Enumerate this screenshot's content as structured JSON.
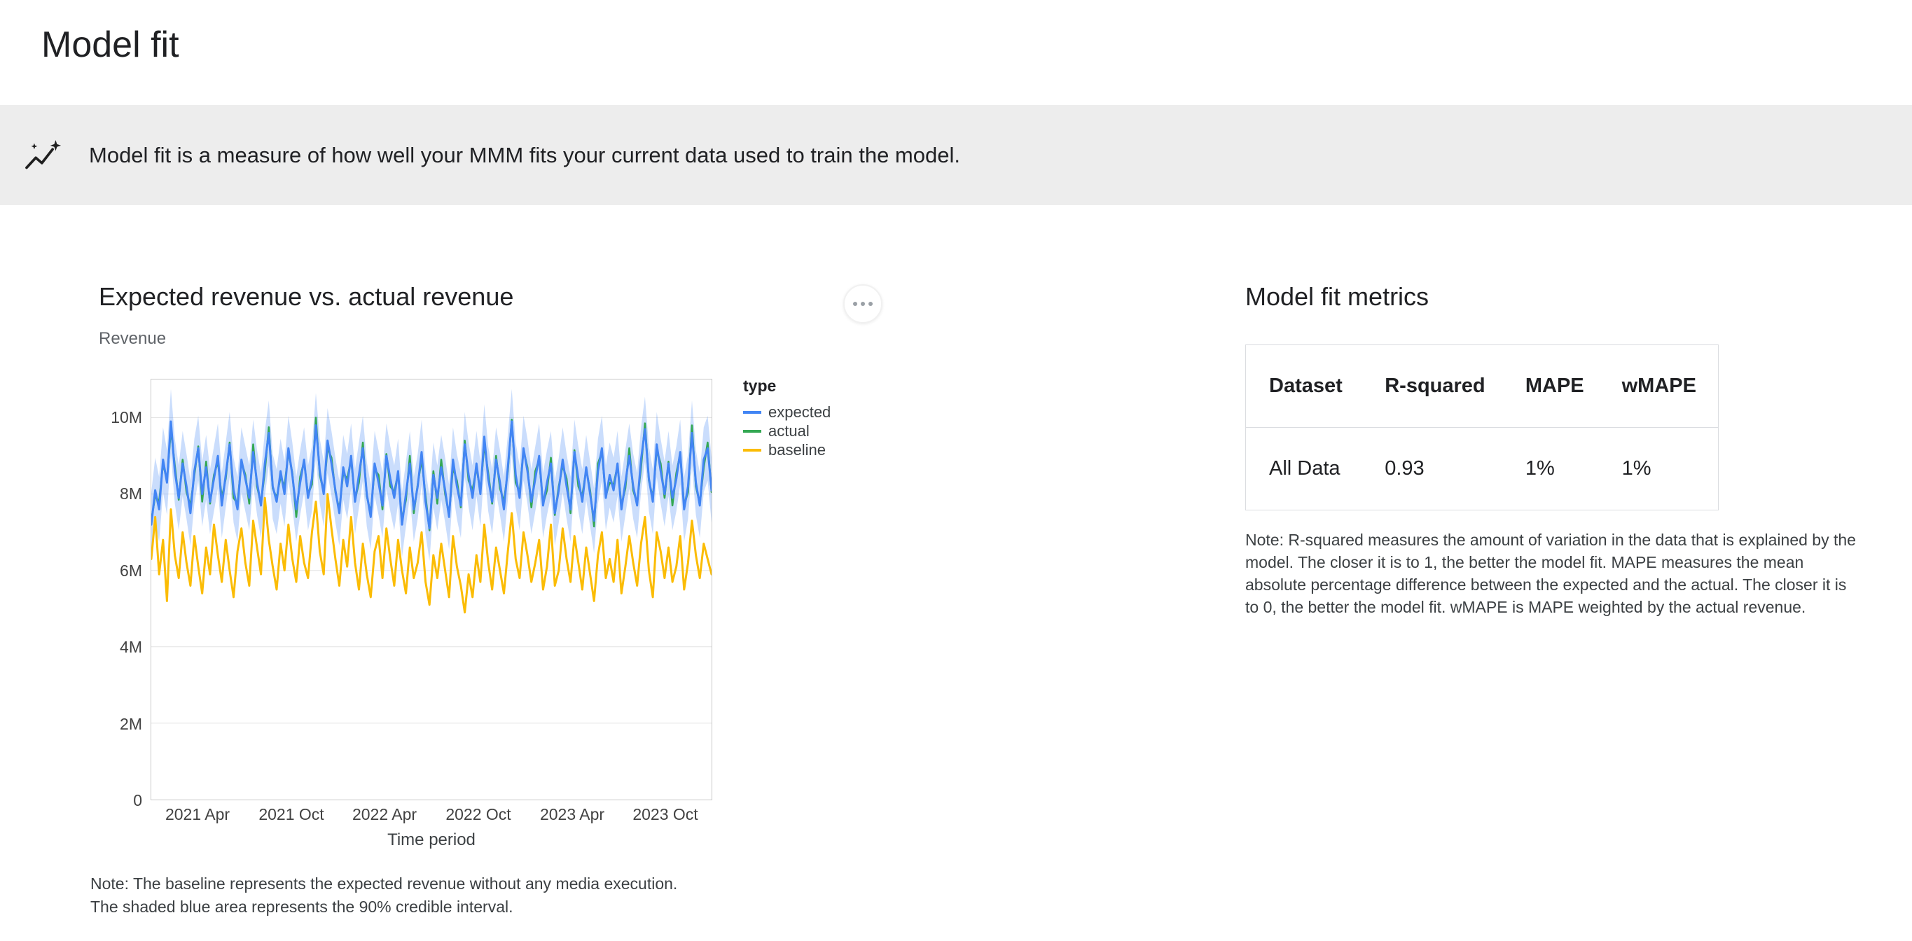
{
  "page": {
    "title": "Model fit"
  },
  "banner": {
    "icon": "insights-icon",
    "text": "Model fit is a measure of how well your MMM fits your current data used to train the model."
  },
  "chart_note_lines": [
    "Note: The baseline represents the expected revenue without any media execution.",
    "The shaded blue area represents the 90% credible interval."
  ],
  "metrics": {
    "title": "Model fit metrics",
    "table": {
      "headers": [
        "Dataset",
        "R-squared",
        "MAPE",
        "wMAPE"
      ],
      "rows": [
        [
          "All Data",
          "0.93",
          "1%",
          "1%"
        ]
      ]
    },
    "note": "Note: R-squared measures the amount of variation in the data that is explained by the model. The closer it is to 1, the better the model fit. MAPE measures the mean absolute percentage difference between the expected and the actual. The closer it is to 0, the better the model fit. wMAPE is MAPE weighted by the actual revenue."
  },
  "chart_data": {
    "type": "line",
    "title": "Expected revenue vs. actual revenue",
    "ylabel": "Revenue",
    "xlabel": "Time period",
    "ylim_m": [
      0,
      11
    ],
    "y_ticks": [
      {
        "value_m": 0,
        "label": "0"
      },
      {
        "value_m": 2,
        "label": "2M"
      },
      {
        "value_m": 4,
        "label": "4M"
      },
      {
        "value_m": 6,
        "label": "6M"
      },
      {
        "value_m": 8,
        "label": "8M"
      },
      {
        "value_m": 10,
        "label": "10M"
      }
    ],
    "x_ticks": [
      {
        "f": 0.083,
        "label": "2021 Apr"
      },
      {
        "f": 0.25,
        "label": "2021 Oct"
      },
      {
        "f": 0.417,
        "label": "2022 Apr"
      },
      {
        "f": 0.583,
        "label": "2022 Oct"
      },
      {
        "f": 0.75,
        "label": "2023 Apr"
      },
      {
        "f": 0.917,
        "label": "2023 Oct"
      }
    ],
    "credible_interval_halfwidth_m": 0.85,
    "credible_interval_label": "90% credible interval",
    "legend": {
      "title": "type",
      "entries": [
        {
          "label": "expected",
          "color": "#4285F4"
        },
        {
          "label": "actual",
          "color": "#34A853"
        },
        {
          "label": "baseline",
          "color": "#FBBC04"
        }
      ]
    },
    "series": [
      {
        "name": "expected",
        "color": "#4285F4",
        "values_m": [
          7.2,
          8.1,
          7.6,
          8.9,
          8.3,
          9.9,
          8.6,
          7.9,
          8.8,
          8.2,
          7.5,
          8.6,
          9.2,
          8.0,
          8.7,
          7.8,
          8.4,
          9.0,
          7.7,
          8.5,
          9.3,
          8.1,
          7.6,
          8.9,
          8.4,
          7.9,
          9.1,
          8.3,
          7.7,
          8.8,
          9.6,
          8.2,
          7.8,
          8.6,
          8.0,
          9.2,
          8.5,
          7.6,
          8.3,
          8.9,
          7.9,
          8.4,
          9.8,
          8.6,
          8.0,
          9.4,
          8.8,
          8.1,
          7.5,
          8.7,
          8.2,
          9.0,
          7.8,
          8.5,
          9.2,
          8.0,
          7.4,
          8.8,
          8.3,
          7.7,
          9.0,
          8.4,
          7.9,
          8.6,
          7.2,
          8.0,
          8.8,
          7.6,
          8.2,
          9.1,
          7.8,
          7.1,
          8.5,
          7.9,
          8.7,
          8.1,
          7.4,
          8.9,
          8.2,
          7.7,
          9.3,
          8.5,
          7.9,
          8.8,
          8.0,
          9.5,
          8.4,
          7.8,
          8.9,
          8.3,
          7.6,
          8.7,
          9.9,
          8.5,
          7.9,
          9.2,
          8.6,
          7.8,
          8.4,
          9.0,
          7.7,
          8.3,
          8.8,
          7.5,
          8.1,
          8.9,
          8.2,
          7.6,
          9.1,
          8.4,
          7.8,
          8.7,
          8.0,
          7.3,
          8.6,
          9.2,
          7.9,
          8.5,
          8.1,
          8.8,
          7.6,
          8.3,
          9.0,
          8.2,
          7.7,
          8.9,
          9.7,
          8.4,
          7.8,
          9.3,
          8.6,
          8.0,
          8.8,
          7.9,
          8.4,
          9.1,
          7.6,
          8.2,
          9.6,
          8.3,
          7.7,
          8.9,
          9.2,
          8.1
        ]
      },
      {
        "name": "actual",
        "color": "#34A853",
        "values_m": [
          7.3,
          7.95,
          7.8,
          8.8,
          8.35,
          9.7,
          8.75,
          7.85,
          8.9,
          8.05,
          7.7,
          8.5,
          9.25,
          7.8,
          8.85,
          7.75,
          8.5,
          8.85,
          7.9,
          8.4,
          9.35,
          7.9,
          7.75,
          8.85,
          8.5,
          7.75,
          9.3,
          8.2,
          7.75,
          8.6,
          9.75,
          8.15,
          7.9,
          8.45,
          8.2,
          9.1,
          8.55,
          7.4,
          8.45,
          8.85,
          8.0,
          8.25,
          10.0,
          8.5,
          8.05,
          9.2,
          8.95,
          8.05,
          7.6,
          8.55,
          8.4,
          8.9,
          7.85,
          8.3,
          9.35,
          7.95,
          7.5,
          8.65,
          8.5,
          7.6,
          9.05,
          8.2,
          8.05,
          8.55,
          7.3,
          7.85,
          9.0,
          7.5,
          8.25,
          8.9,
          7.95,
          7.05,
          8.6,
          7.75,
          8.9,
          8.0,
          7.45,
          8.7,
          8.35,
          7.65,
          9.4,
          8.35,
          8.1,
          8.7,
          8.05,
          9.3,
          8.55,
          7.75,
          9.0,
          8.15,
          7.8,
          8.6,
          9.95,
          8.3,
          8.05,
          9.15,
          8.7,
          7.65,
          8.6,
          8.9,
          7.75,
          8.1,
          8.95,
          7.45,
          8.2,
          8.75,
          8.4,
          7.5,
          9.15,
          8.2,
          7.95,
          8.65,
          8.1,
          7.15,
          8.8,
          9.1,
          7.95,
          8.3,
          8.25,
          8.75,
          7.7,
          8.15,
          9.2,
          8.1,
          7.75,
          8.7,
          9.85,
          8.35,
          7.9,
          9.15,
          8.8,
          7.9,
          8.85,
          7.7,
          8.55,
          9.05,
          7.7,
          8.05,
          9.8,
          8.2,
          7.75,
          8.7,
          9.35,
          8.05
        ]
      },
      {
        "name": "baseline",
        "color": "#FBBC04",
        "values_m": [
          6.3,
          7.4,
          5.9,
          6.8,
          5.2,
          7.6,
          6.4,
          5.8,
          7.0,
          6.2,
          5.6,
          6.9,
          6.1,
          5.4,
          6.6,
          5.9,
          7.2,
          6.4,
          5.7,
          6.8,
          6.0,
          5.3,
          6.5,
          7.1,
          6.2,
          5.6,
          7.3,
          6.6,
          5.9,
          7.9,
          6.8,
          6.1,
          5.5,
          6.7,
          6.0,
          7.2,
          6.3,
          5.7,
          6.9,
          6.2,
          5.8,
          7.0,
          7.8,
          6.5,
          5.9,
          8.0,
          7.1,
          6.3,
          5.6,
          6.8,
          6.1,
          7.4,
          6.2,
          5.5,
          6.7,
          5.9,
          5.3,
          6.5,
          6.9,
          5.8,
          7.1,
          6.3,
          5.6,
          6.8,
          6.0,
          5.4,
          6.6,
          5.8,
          6.2,
          7.0,
          5.7,
          5.1,
          6.4,
          5.8,
          6.7,
          6.0,
          5.3,
          6.9,
          6.1,
          5.6,
          4.9,
          5.9,
          5.3,
          6.4,
          5.7,
          7.2,
          6.2,
          5.5,
          6.6,
          6.0,
          5.4,
          6.5,
          7.5,
          6.3,
          5.8,
          7.0,
          6.4,
          5.7,
          6.2,
          6.8,
          5.5,
          6.1,
          7.2,
          5.6,
          6.0,
          7.1,
          6.3,
          5.7,
          6.9,
          6.2,
          5.5,
          6.6,
          5.9,
          5.2,
          6.4,
          7.0,
          5.8,
          6.3,
          5.7,
          6.8,
          5.4,
          6.1,
          6.9,
          6.2,
          5.6,
          6.7,
          7.4,
          6.0,
          5.3,
          7.0,
          6.5,
          5.8,
          6.6,
          5.7,
          6.1,
          6.9,
          5.5,
          6.2,
          7.3,
          6.4,
          5.8,
          6.7,
          6.3,
          5.9
        ]
      }
    ]
  }
}
